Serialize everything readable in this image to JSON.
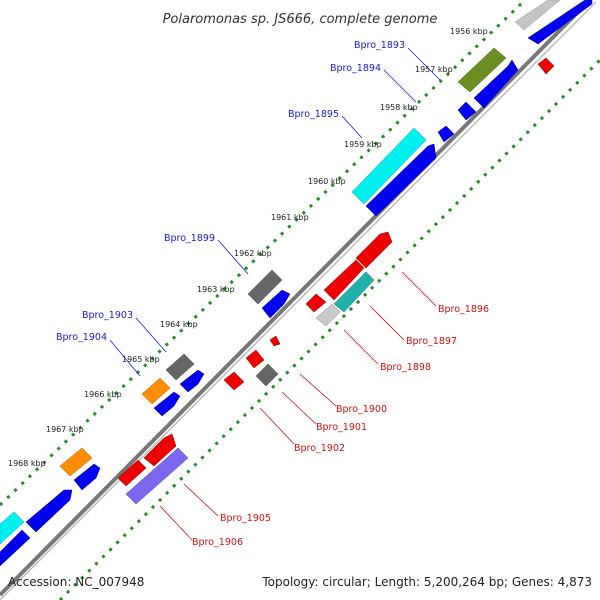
{
  "title": "Polaromonas sp. JS666, complete genome",
  "footer": {
    "accession": "Accession: NC_007948",
    "topology": "Topology: circular; Length: 5,200,264 bp; Genes: 4,873"
  },
  "kbp_labels": [
    "1956 kbp",
    "1957 kbp",
    "1958 kbp",
    "1959 kbp",
    "1960 kbp",
    "1961 kbp",
    "1962 kbp",
    "1963 kbp",
    "1964 kbp",
    "1965 kbp",
    "1966 kbp",
    "1967 kbp",
    "1968 kbp"
  ],
  "genes_outer": [
    "Bpro_1893",
    "Bpro_1894",
    "Bpro_1895",
    "Bpro_1899",
    "Bpro_1903",
    "Bpro_1904"
  ],
  "genes_inner": [
    "Bpro_1896",
    "Bpro_1897",
    "Bpro_1898",
    "Bpro_1900",
    "Bpro_1901",
    "Bpro_1902",
    "Bpro_1905",
    "Bpro_1906"
  ],
  "colors": {
    "forward_label": "#1a1acc",
    "reverse_label": "#cc1111",
    "blue": "#0000ee",
    "red": "#ee0000",
    "cyan": "#00f0f0",
    "olive": "#6b8e23",
    "orange": "#ff8c00",
    "gray": "#666666",
    "lightgray": "#bbbbbb",
    "purple": "#7b68ee",
    "tick": "#228b22",
    "backbone": "#888888"
  }
}
